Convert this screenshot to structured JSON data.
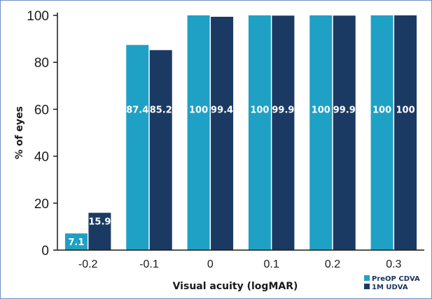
{
  "chart_data": {
    "type": "bar",
    "categories": [
      "-0.2",
      "-0.1",
      "0",
      "0.1",
      "0.2",
      "0.3"
    ],
    "series": [
      {
        "name": "PreOP CDVA",
        "values": [
          7.1,
          87.4,
          100,
          100,
          100,
          100
        ],
        "labels": [
          "7.1",
          "87.4",
          "100",
          "100",
          "100",
          "100"
        ],
        "color": "#1fa1c5"
      },
      {
        "name": "1M UDVA",
        "values": [
          15.9,
          85.2,
          99.4,
          99.9,
          99.9,
          100
        ],
        "labels": [
          "15.9",
          "85.2",
          "99.4",
          "99.9",
          "99.9",
          "100"
        ],
        "color": "#1b3a63"
      }
    ],
    "xlabel": "Visual acuity (logMAR)",
    "ylabel": "% of eyes",
    "ylim": [
      0,
      100
    ],
    "yticks": [
      "0",
      "20",
      "40",
      "60",
      "80",
      "100"
    ],
    "grid": false,
    "legend_position": "bottom-right",
    "data_labels_position": "center-at-60-or-above-bar",
    "colors": {
      "frame": "#6b8fc4",
      "axis": "#1a1a1a"
    }
  }
}
